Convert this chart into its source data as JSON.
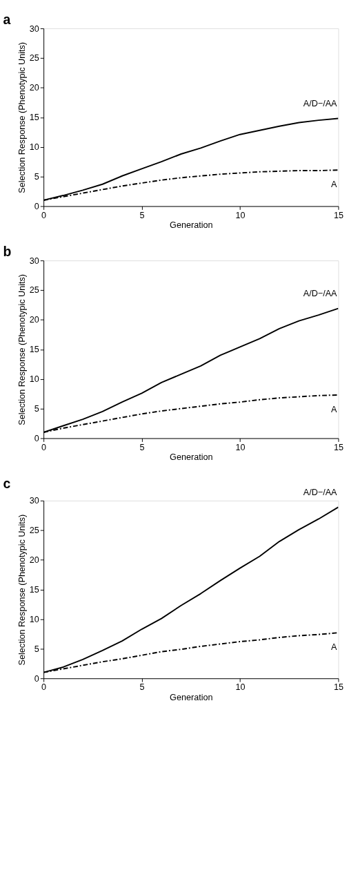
{
  "chart_data": [
    {
      "type": "line",
      "title": "a",
      "xlabel": "Generation",
      "ylabel": "Selection Response (Phenotypic Units)",
      "x": [
        0,
        1,
        2,
        3,
        4,
        5,
        6,
        7,
        8,
        9,
        10,
        11,
        12,
        13,
        14,
        15
      ],
      "xlim": [
        0,
        15
      ],
      "xticks": [
        0,
        5,
        10,
        15
      ],
      "ylim": [
        0,
        30
      ],
      "yticks": [
        0,
        5,
        10,
        15,
        20,
        25,
        30
      ],
      "grid": false,
      "legend": false,
      "series": [
        {
          "name": "A/D−/AA",
          "color": "#000000",
          "line_style": "solid",
          "values": [
            1.0,
            1.8,
            2.7,
            3.7,
            5.1,
            6.3,
            7.5,
            8.8,
            9.8,
            11.0,
            12.1,
            12.8,
            13.5,
            14.1,
            14.5,
            14.8
          ]
        },
        {
          "name": "A",
          "color": "#000000",
          "line_style": "dashed",
          "values": [
            1.0,
            1.6,
            2.2,
            2.8,
            3.4,
            3.9,
            4.4,
            4.8,
            5.1,
            5.4,
            5.6,
            5.8,
            5.9,
            6.0,
            6.0,
            6.1
          ]
        }
      ]
    },
    {
      "type": "line",
      "title": "b",
      "xlabel": "Generation",
      "ylabel": "Selection Response (Phenotypic Units)",
      "x": [
        0,
        1,
        2,
        3,
        4,
        5,
        6,
        7,
        8,
        9,
        10,
        11,
        12,
        13,
        14,
        15
      ],
      "xlim": [
        0,
        15
      ],
      "xticks": [
        0,
        5,
        10,
        15
      ],
      "ylim": [
        0,
        30
      ],
      "yticks": [
        0,
        5,
        10,
        15,
        20,
        25,
        30
      ],
      "grid": false,
      "legend": false,
      "series": [
        {
          "name": "A/D−/AA",
          "color": "#000000",
          "line_style": "solid",
          "values": [
            1.0,
            2.1,
            3.2,
            4.5,
            6.1,
            7.6,
            9.4,
            10.8,
            12.2,
            14.0,
            15.4,
            16.8,
            18.5,
            19.8,
            20.8,
            21.9
          ]
        },
        {
          "name": "A",
          "color": "#000000",
          "line_style": "dashed",
          "values": [
            1.0,
            1.7,
            2.3,
            2.9,
            3.5,
            4.1,
            4.6,
            5.0,
            5.4,
            5.8,
            6.1,
            6.5,
            6.8,
            7.0,
            7.2,
            7.3
          ]
        }
      ]
    },
    {
      "type": "line",
      "title": "c",
      "xlabel": "Generation",
      "ylabel": "Selection Response (Phenotypic Units)",
      "x": [
        0,
        1,
        2,
        3,
        4,
        5,
        6,
        7,
        8,
        9,
        10,
        11,
        12,
        13,
        14,
        15
      ],
      "xlim": [
        0,
        15
      ],
      "xticks": [
        0,
        5,
        10,
        15
      ],
      "ylim": [
        0,
        30
      ],
      "yticks": [
        0,
        5,
        10,
        15,
        20,
        25,
        30
      ],
      "grid": false,
      "legend": false,
      "series": [
        {
          "name": "A/D−/AA",
          "color": "#000000",
          "line_style": "solid",
          "values": [
            1.0,
            1.9,
            3.2,
            4.7,
            6.3,
            8.3,
            10.1,
            12.3,
            14.3,
            16.5,
            18.6,
            20.6,
            23.1,
            25.1,
            26.9,
            28.9
          ]
        },
        {
          "name": "A",
          "color": "#000000",
          "line_style": "dashed",
          "values": [
            1.0,
            1.6,
            2.2,
            2.8,
            3.3,
            3.9,
            4.5,
            4.9,
            5.4,
            5.8,
            6.2,
            6.5,
            6.9,
            7.2,
            7.4,
            7.7
          ]
        }
      ]
    }
  ]
}
